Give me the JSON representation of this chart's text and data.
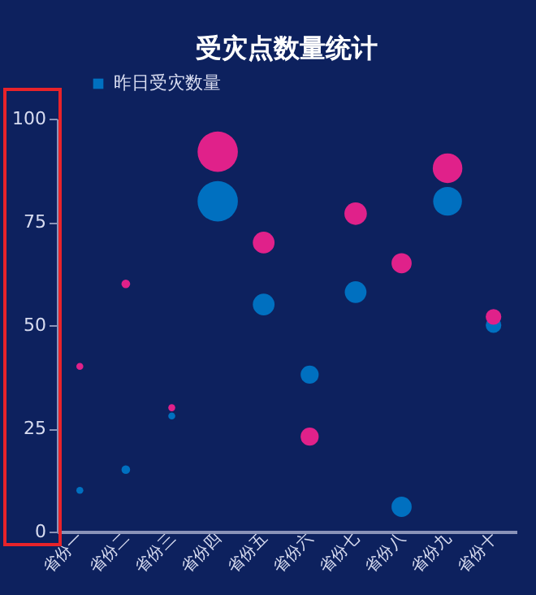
{
  "chart_data": {
    "type": "bubble",
    "title": "受灾点数量统计",
    "categories": [
      "省份一",
      "省份二",
      "省份三",
      "省份四",
      "省份五",
      "省份六",
      "省份七",
      "省份八",
      "省份九",
      "省份十"
    ],
    "series": [
      {
        "name": "昨日受灾数量",
        "color": "#0070c0",
        "values": [
          10,
          15,
          28,
          80,
          55,
          38,
          58,
          6,
          80,
          50
        ],
        "sizes": [
          0.03,
          0.046,
          0.03,
          1,
          0.29,
          0.2,
          0.29,
          0.25,
          0.51,
          0.15
        ]
      },
      {
        "color": "#e0218a",
        "values": [
          40,
          60,
          30,
          92,
          70,
          23,
          77,
          65,
          88,
          52
        ],
        "sizes": [
          0.03,
          0.046,
          0.03,
          1,
          0.29,
          0.2,
          0.31,
          0.25,
          0.54,
          0.15
        ]
      }
    ],
    "ylim": [
      0,
      100
    ],
    "yticks": [
      0,
      25,
      50,
      75,
      100
    ],
    "grid": false,
    "legend": "top left"
  }
}
